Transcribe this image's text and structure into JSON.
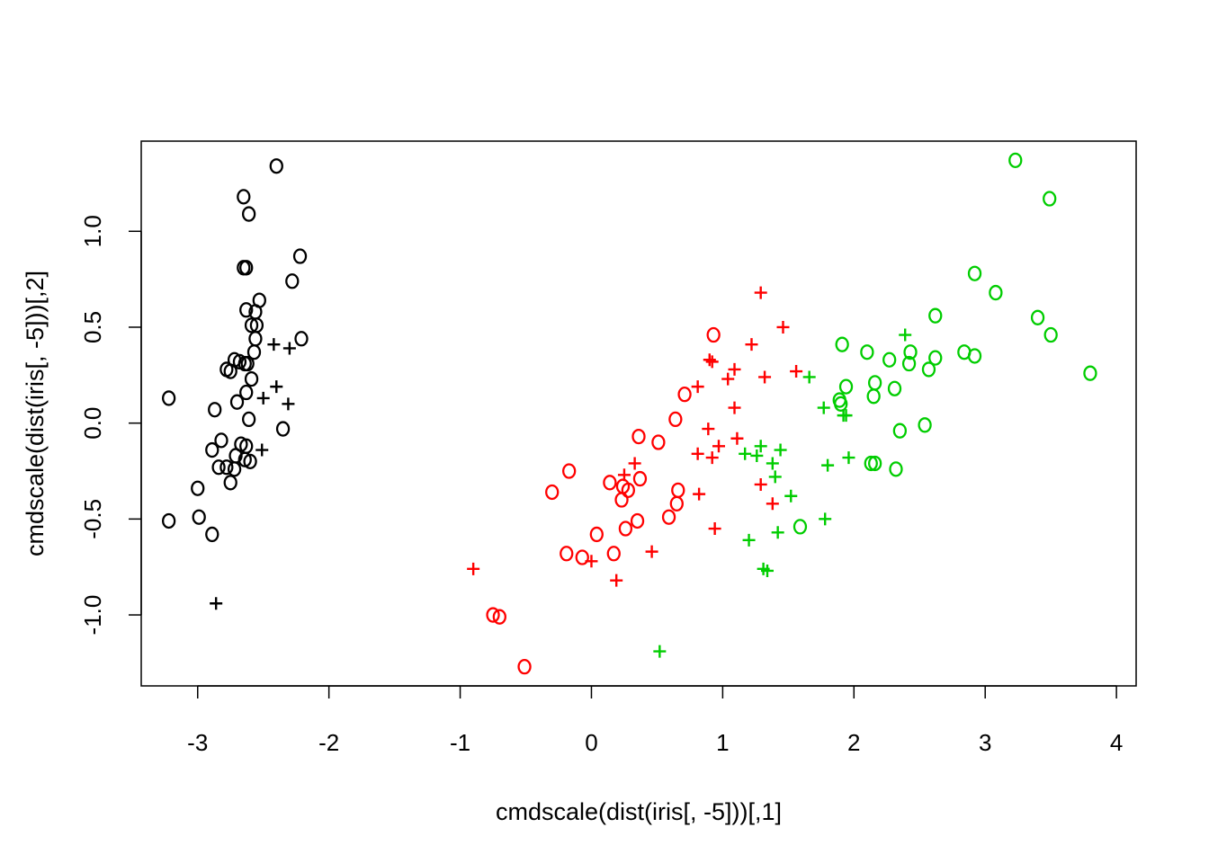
{
  "chart_data": {
    "type": "scatter",
    "xlabel": "cmdscale(dist(iris[, -5]))[,1]",
    "ylabel": "cmdscale(dist(iris[, -5]))[,2]",
    "xlim": [
      -3.43,
      4.15
    ],
    "ylim": [
      -1.37,
      1.47
    ],
    "x_ticks": [
      -3,
      -2,
      -1,
      0,
      1,
      2,
      3,
      4
    ],
    "y_ticks": [
      -1.0,
      -0.5,
      0.0,
      0.5,
      1.0
    ],
    "x_tick_labels": [
      "-3",
      "-2",
      "-1",
      "0",
      "1",
      "2",
      "3",
      "4"
    ],
    "y_tick_labels": [
      "-1.0",
      "-0.5",
      "0.0",
      "0.5",
      "1.0"
    ],
    "grid": false,
    "legend": "none",
    "series": [
      {
        "color": "#000000",
        "points": [
          {
            "x": -2.4,
            "y": 1.34,
            "m": "o"
          },
          {
            "x": -2.65,
            "y": 1.18,
            "m": "o"
          },
          {
            "x": -2.61,
            "y": 1.09,
            "m": "o"
          },
          {
            "x": -2.22,
            "y": 0.87,
            "m": "o"
          },
          {
            "x": -2.65,
            "y": 0.81,
            "m": "o"
          },
          {
            "x": -2.63,
            "y": 0.81,
            "m": "o"
          },
          {
            "x": -2.28,
            "y": 0.74,
            "m": "o"
          },
          {
            "x": -2.53,
            "y": 0.64,
            "m": "o"
          },
          {
            "x": -2.63,
            "y": 0.59,
            "m": "o"
          },
          {
            "x": -2.56,
            "y": 0.58,
            "m": "o"
          },
          {
            "x": -2.59,
            "y": 0.51,
            "m": "o"
          },
          {
            "x": -2.55,
            "y": 0.51,
            "m": "o"
          },
          {
            "x": -2.21,
            "y": 0.44,
            "m": "o"
          },
          {
            "x": -2.56,
            "y": 0.44,
            "m": "o"
          },
          {
            "x": -2.57,
            "y": 0.37,
            "m": "o"
          },
          {
            "x": -2.72,
            "y": 0.33,
            "m": "o"
          },
          {
            "x": -2.68,
            "y": 0.32,
            "m": "o"
          },
          {
            "x": -2.64,
            "y": 0.31,
            "m": "o"
          },
          {
            "x": -2.62,
            "y": 0.31,
            "m": "o"
          },
          {
            "x": -2.78,
            "y": 0.28,
            "m": "o"
          },
          {
            "x": -2.75,
            "y": 0.27,
            "m": "o"
          },
          {
            "x": -2.59,
            "y": 0.23,
            "m": "o"
          },
          {
            "x": -2.63,
            "y": 0.16,
            "m": "o"
          },
          {
            "x": -3.22,
            "y": 0.13,
            "m": "o"
          },
          {
            "x": -2.7,
            "y": 0.11,
            "m": "o"
          },
          {
            "x": -2.87,
            "y": 0.07,
            "m": "o"
          },
          {
            "x": -2.61,
            "y": 0.02,
            "m": "o"
          },
          {
            "x": -2.35,
            "y": -0.03,
            "m": "o"
          },
          {
            "x": -2.82,
            "y": -0.09,
            "m": "o"
          },
          {
            "x": -2.67,
            "y": -0.11,
            "m": "o"
          },
          {
            "x": -2.63,
            "y": -0.12,
            "m": "o"
          },
          {
            "x": -2.89,
            "y": -0.14,
            "m": "o"
          },
          {
            "x": -2.71,
            "y": -0.17,
            "m": "o"
          },
          {
            "x": -2.64,
            "y": -0.19,
            "m": "o"
          },
          {
            "x": -2.6,
            "y": -0.2,
            "m": "o"
          },
          {
            "x": -2.84,
            "y": -0.23,
            "m": "o"
          },
          {
            "x": -2.78,
            "y": -0.23,
            "m": "o"
          },
          {
            "x": -2.72,
            "y": -0.24,
            "m": "o"
          },
          {
            "x": -2.75,
            "y": -0.31,
            "m": "o"
          },
          {
            "x": -3.0,
            "y": -0.34,
            "m": "o"
          },
          {
            "x": -2.99,
            "y": -0.49,
            "m": "o"
          },
          {
            "x": -3.22,
            "y": -0.51,
            "m": "o"
          },
          {
            "x": -2.89,
            "y": -0.58,
            "m": "o"
          },
          {
            "x": -2.42,
            "y": 0.41,
            "m": "+"
          },
          {
            "x": -2.3,
            "y": 0.39,
            "m": "+"
          },
          {
            "x": -2.4,
            "y": 0.19,
            "m": "+"
          },
          {
            "x": -2.5,
            "y": 0.13,
            "m": "+"
          },
          {
            "x": -2.31,
            "y": 0.1,
            "m": "+"
          },
          {
            "x": -2.51,
            "y": -0.14,
            "m": "+"
          },
          {
            "x": -2.86,
            "y": -0.94,
            "m": "+"
          }
        ]
      },
      {
        "color": "#ff0000",
        "points": [
          {
            "x": 0.93,
            "y": 0.46,
            "m": "o"
          },
          {
            "x": 0.71,
            "y": 0.15,
            "m": "o"
          },
          {
            "x": 0.64,
            "y": 0.02,
            "m": "o"
          },
          {
            "x": 0.36,
            "y": -0.07,
            "m": "o"
          },
          {
            "x": 0.51,
            "y": -0.1,
            "m": "o"
          },
          {
            "x": -0.17,
            "y": -0.25,
            "m": "o"
          },
          {
            "x": 0.37,
            "y": -0.29,
            "m": "o"
          },
          {
            "x": 0.14,
            "y": -0.31,
            "m": "o"
          },
          {
            "x": 0.24,
            "y": -0.33,
            "m": "o"
          },
          {
            "x": 0.28,
            "y": -0.35,
            "m": "o"
          },
          {
            "x": 0.66,
            "y": -0.35,
            "m": "o"
          },
          {
            "x": -0.3,
            "y": -0.36,
            "m": "o"
          },
          {
            "x": 0.23,
            "y": -0.4,
            "m": "o"
          },
          {
            "x": 0.65,
            "y": -0.42,
            "m": "o"
          },
          {
            "x": 0.59,
            "y": -0.49,
            "m": "o"
          },
          {
            "x": 0.35,
            "y": -0.51,
            "m": "o"
          },
          {
            "x": 0.26,
            "y": -0.55,
            "m": "o"
          },
          {
            "x": 0.04,
            "y": -0.58,
            "m": "o"
          },
          {
            "x": -0.19,
            "y": -0.68,
            "m": "o"
          },
          {
            "x": 0.17,
            "y": -0.68,
            "m": "o"
          },
          {
            "x": -0.07,
            "y": -0.7,
            "m": "o"
          },
          {
            "x": -0.75,
            "y": -1.0,
            "m": "o"
          },
          {
            "x": -0.7,
            "y": -1.01,
            "m": "o"
          },
          {
            "x": -0.51,
            "y": -1.27,
            "m": "o"
          },
          {
            "x": 1.29,
            "y": 0.68,
            "m": "+"
          },
          {
            "x": 1.46,
            "y": 0.5,
            "m": "+"
          },
          {
            "x": 1.22,
            "y": 0.41,
            "m": "+"
          },
          {
            "x": 0.9,
            "y": 0.33,
            "m": "+"
          },
          {
            "x": 0.92,
            "y": 0.32,
            "m": "+"
          },
          {
            "x": 1.09,
            "y": 0.28,
            "m": "+"
          },
          {
            "x": 1.56,
            "y": 0.27,
            "m": "+"
          },
          {
            "x": 1.32,
            "y": 0.24,
            "m": "+"
          },
          {
            "x": 1.04,
            "y": 0.23,
            "m": "+"
          },
          {
            "x": 0.81,
            "y": 0.19,
            "m": "+"
          },
          {
            "x": 1.09,
            "y": 0.08,
            "m": "+"
          },
          {
            "x": 0.89,
            "y": -0.03,
            "m": "+"
          },
          {
            "x": 1.11,
            "y": -0.08,
            "m": "+"
          },
          {
            "x": 0.97,
            "y": -0.12,
            "m": "+"
          },
          {
            "x": 0.81,
            "y": -0.16,
            "m": "+"
          },
          {
            "x": 0.92,
            "y": -0.18,
            "m": "+"
          },
          {
            "x": 0.33,
            "y": -0.21,
            "m": "+"
          },
          {
            "x": 0.25,
            "y": -0.27,
            "m": "+"
          },
          {
            "x": 1.29,
            "y": -0.32,
            "m": "+"
          },
          {
            "x": 0.82,
            "y": -0.37,
            "m": "+"
          },
          {
            "x": 1.38,
            "y": -0.42,
            "m": "+"
          },
          {
            "x": 0.94,
            "y": -0.55,
            "m": "+"
          },
          {
            "x": 0.46,
            "y": -0.67,
            "m": "+"
          },
          {
            "x": 0.0,
            "y": -0.72,
            "m": "+"
          },
          {
            "x": -0.9,
            "y": -0.76,
            "m": "+"
          },
          {
            "x": 0.19,
            "y": -0.82,
            "m": "+"
          }
        ]
      },
      {
        "color": "#00cd00",
        "points": [
          {
            "x": 3.23,
            "y": 1.37,
            "m": "o"
          },
          {
            "x": 3.49,
            "y": 1.17,
            "m": "o"
          },
          {
            "x": 2.92,
            "y": 0.78,
            "m": "o"
          },
          {
            "x": 3.08,
            "y": 0.68,
            "m": "o"
          },
          {
            "x": 2.62,
            "y": 0.56,
            "m": "o"
          },
          {
            "x": 3.4,
            "y": 0.55,
            "m": "o"
          },
          {
            "x": 3.5,
            "y": 0.46,
            "m": "o"
          },
          {
            "x": 1.91,
            "y": 0.41,
            "m": "o"
          },
          {
            "x": 2.1,
            "y": 0.37,
            "m": "o"
          },
          {
            "x": 2.43,
            "y": 0.37,
            "m": "o"
          },
          {
            "x": 2.84,
            "y": 0.37,
            "m": "o"
          },
          {
            "x": 2.92,
            "y": 0.35,
            "m": "o"
          },
          {
            "x": 2.27,
            "y": 0.33,
            "m": "o"
          },
          {
            "x": 2.62,
            "y": 0.34,
            "m": "o"
          },
          {
            "x": 2.42,
            "y": 0.31,
            "m": "o"
          },
          {
            "x": 2.57,
            "y": 0.28,
            "m": "o"
          },
          {
            "x": 3.8,
            "y": 0.26,
            "m": "o"
          },
          {
            "x": 2.16,
            "y": 0.21,
            "m": "o"
          },
          {
            "x": 1.94,
            "y": 0.19,
            "m": "o"
          },
          {
            "x": 2.31,
            "y": 0.18,
            "m": "o"
          },
          {
            "x": 2.15,
            "y": 0.14,
            "m": "o"
          },
          {
            "x": 1.89,
            "y": 0.12,
            "m": "o"
          },
          {
            "x": 1.9,
            "y": 0.1,
            "m": "o"
          },
          {
            "x": 2.54,
            "y": -0.01,
            "m": "o"
          },
          {
            "x": 2.35,
            "y": -0.04,
            "m": "o"
          },
          {
            "x": 2.13,
            "y": -0.21,
            "m": "o"
          },
          {
            "x": 2.16,
            "y": -0.21,
            "m": "o"
          },
          {
            "x": 2.32,
            "y": -0.24,
            "m": "o"
          },
          {
            "x": 1.59,
            "y": -0.54,
            "m": "o"
          },
          {
            "x": 2.39,
            "y": 0.46,
            "m": "+"
          },
          {
            "x": 1.66,
            "y": 0.24,
            "m": "+"
          },
          {
            "x": 1.77,
            "y": 0.08,
            "m": "+"
          },
          {
            "x": 1.92,
            "y": 0.04,
            "m": "+"
          },
          {
            "x": 1.94,
            "y": 0.04,
            "m": "+"
          },
          {
            "x": 1.29,
            "y": -0.12,
            "m": "+"
          },
          {
            "x": 1.44,
            "y": -0.14,
            "m": "+"
          },
          {
            "x": 1.17,
            "y": -0.16,
            "m": "+"
          },
          {
            "x": 1.26,
            "y": -0.17,
            "m": "+"
          },
          {
            "x": 1.96,
            "y": -0.18,
            "m": "+"
          },
          {
            "x": 1.38,
            "y": -0.21,
            "m": "+"
          },
          {
            "x": 1.8,
            "y": -0.22,
            "m": "+"
          },
          {
            "x": 1.4,
            "y": -0.28,
            "m": "+"
          },
          {
            "x": 1.52,
            "y": -0.38,
            "m": "+"
          },
          {
            "x": 1.78,
            "y": -0.5,
            "m": "+"
          },
          {
            "x": 1.42,
            "y": -0.57,
            "m": "+"
          },
          {
            "x": 1.2,
            "y": -0.61,
            "m": "+"
          },
          {
            "x": 1.31,
            "y": -0.76,
            "m": "+"
          },
          {
            "x": 1.34,
            "y": -0.77,
            "m": "+"
          },
          {
            "x": 0.52,
            "y": -1.19,
            "m": "+"
          }
        ]
      }
    ]
  }
}
